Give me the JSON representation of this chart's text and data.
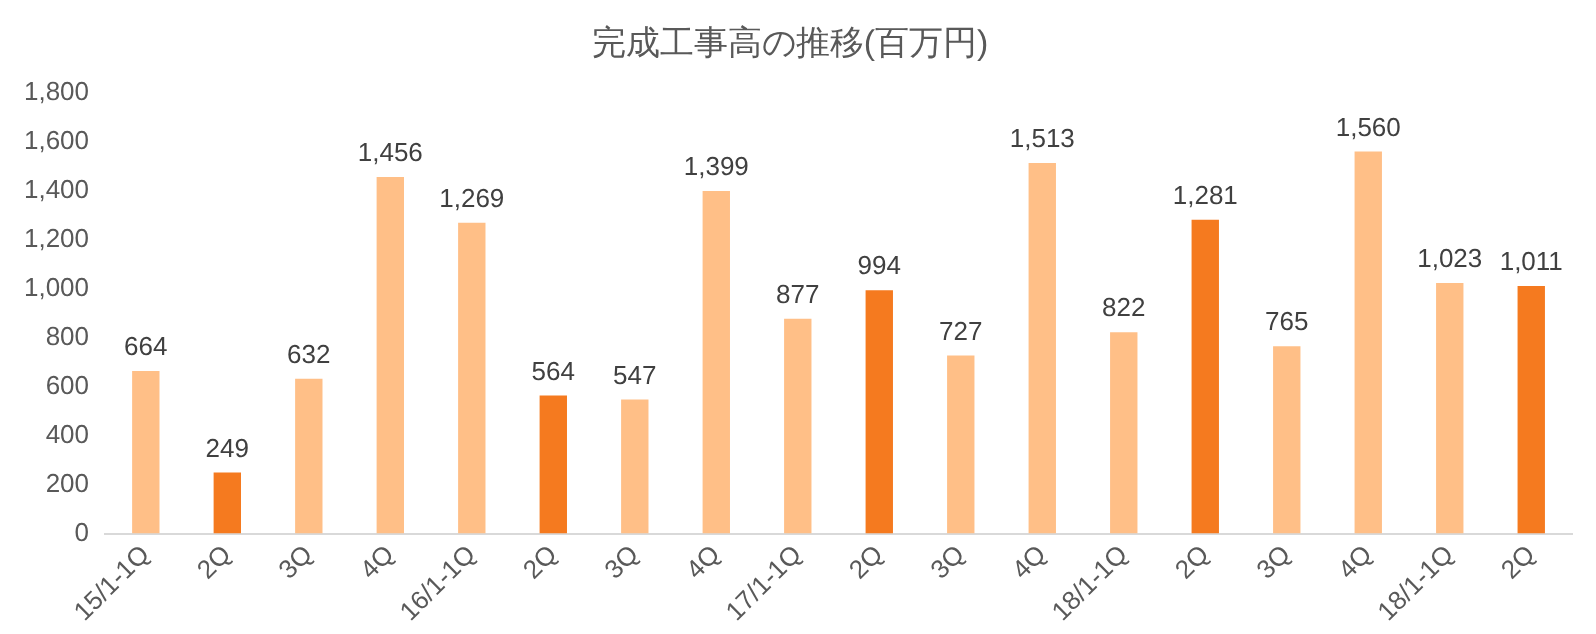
{
  "chart_data": {
    "type": "bar",
    "title": "完成工事高の推移(百万円)",
    "categories": [
      "15/1-1Q",
      "2Q",
      "3Q",
      "4Q",
      "16/1-1Q",
      "2Q",
      "3Q",
      "4Q",
      "17/1-1Q",
      "2Q",
      "3Q",
      "4Q",
      "18/1-1Q",
      "2Q",
      "3Q",
      "4Q",
      "18/1-1Q",
      "2Q"
    ],
    "values": [
      664,
      249,
      632,
      1456,
      1269,
      564,
      547,
      1399,
      877,
      994,
      727,
      1513,
      822,
      1281,
      765,
      1560,
      1023,
      1011
    ],
    "value_labels": [
      "664",
      "249",
      "632",
      "1,456",
      "1,269",
      "564",
      "547",
      "1,399",
      "877",
      "994",
      "727",
      "1,513",
      "822",
      "1,281",
      "765",
      "1,560",
      "1,023",
      "1,011"
    ],
    "colors": [
      "#ffbf87",
      "#f57a1f",
      "#ffbf87",
      "#ffbf87",
      "#ffbf87",
      "#f57a1f",
      "#ffbf87",
      "#ffbf87",
      "#ffbf87",
      "#f57a1f",
      "#ffbf87",
      "#ffbf87",
      "#ffbf87",
      "#f57a1f",
      "#ffbf87",
      "#ffbf87",
      "#ffbf87",
      "#f57a1f"
    ],
    "ylim": [
      0,
      1800
    ],
    "yticks": [
      0,
      200,
      400,
      600,
      800,
      {
        "value": 1000,
        "label": "1,000"
      },
      {
        "value": 1200,
        "label": "1,200"
      },
      {
        "value": 1400,
        "label": "1,400"
      },
      {
        "value": 1600,
        "label": "1,600"
      },
      {
        "value": 1800,
        "label": "1,800"
      }
    ],
    "grid": false,
    "legend": false
  }
}
